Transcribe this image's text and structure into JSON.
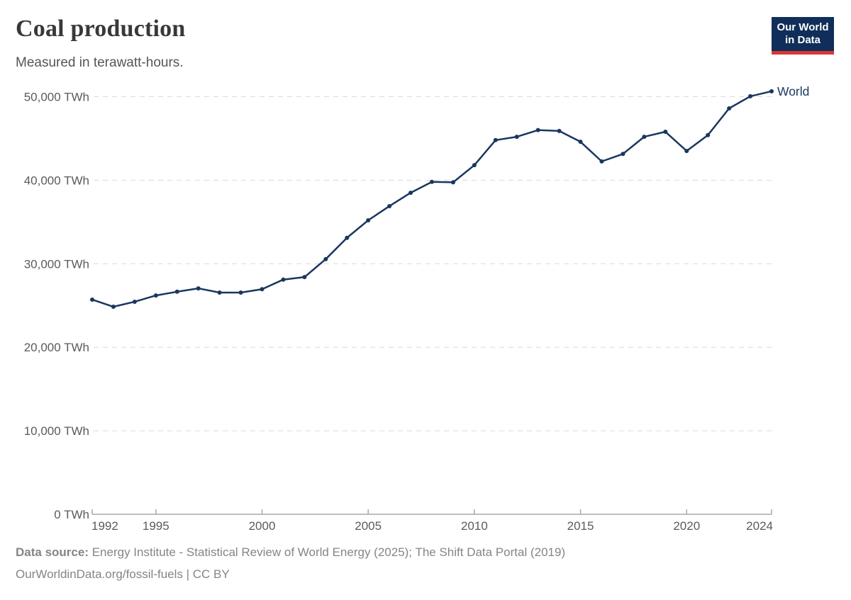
{
  "header": {
    "title": "Coal production",
    "subtitle": "Measured in terawatt-hours.",
    "logo": {
      "line1": "Our World",
      "line2": "in Data",
      "bg_color": "#102e59",
      "accent_color": "#d73a33"
    }
  },
  "chart_data": {
    "type": "line",
    "title": "Coal production",
    "unit": "TWh",
    "xlabel": "",
    "ylabel": "",
    "xlim": [
      1992,
      2024
    ],
    "ylim": [
      0,
      50000
    ],
    "x_ticks": [
      1992,
      1995,
      2000,
      2005,
      2010,
      2015,
      2020,
      2024
    ],
    "y_ticks": [
      0,
      10000,
      20000,
      30000,
      40000,
      50000
    ],
    "y_tick_suffix": " TWh",
    "grid": "horizontal-dashed",
    "legend_position": "line-end-label",
    "series": [
      {
        "name": "World",
        "color": "#19375f",
        "x": [
          1992,
          1993,
          1994,
          1995,
          1996,
          1997,
          1998,
          1999,
          2000,
          2001,
          2002,
          2003,
          2004,
          2005,
          2006,
          2007,
          2008,
          2009,
          2010,
          2011,
          2012,
          2013,
          2014,
          2015,
          2016,
          2017,
          2018,
          2019,
          2020,
          2021,
          2022,
          2023,
          2024
        ],
        "values": [
          25700,
          24850,
          25450,
          26200,
          26650,
          27050,
          26550,
          26550,
          26950,
          28100,
          28400,
          30550,
          33100,
          35200,
          36900,
          38500,
          39800,
          39750,
          41800,
          44800,
          45200,
          46000,
          45900,
          44600,
          42250,
          43150,
          45200,
          45800,
          43500,
          45400,
          48600,
          50050,
          50650
        ]
      }
    ]
  },
  "footer": {
    "source_label": "Data source:",
    "source_text": " Energy Institute - Statistical Review of World Energy (2025); The Shift Data Portal (2019)",
    "license_text": "OurWorldinData.org/fossil-fuels | CC BY"
  },
  "colors": {
    "grid": "#dadada",
    "axis": "#a8a8a8",
    "tick_label": "#5b5b5b",
    "title": "#383838",
    "subtitle": "#555555",
    "footer": "#858585",
    "world_line": "#19375f"
  }
}
